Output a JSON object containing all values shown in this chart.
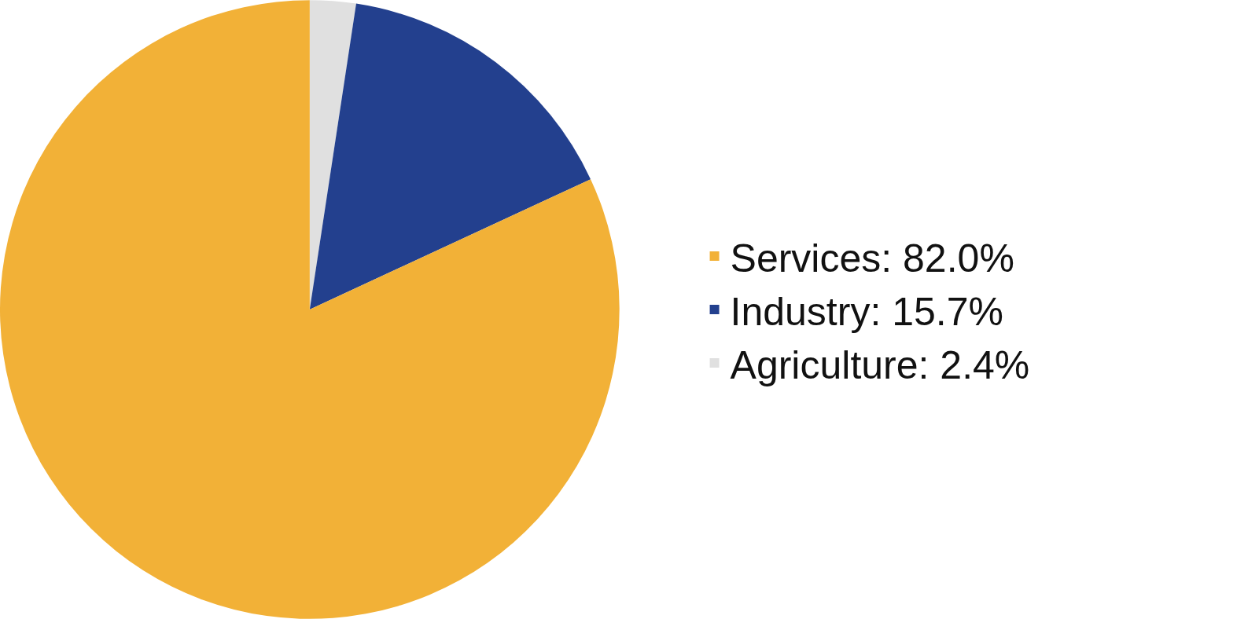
{
  "chart_data": {
    "type": "pie",
    "categories": [
      "Services: 82.0%",
      "Industry: 15.7%",
      "Agriculture: 2.4%"
    ],
    "values": [
      82.0,
      15.7,
      2.4
    ],
    "colors": [
      "#f2b137",
      "#23408e",
      "#e0e0e0"
    ],
    "legend": "right"
  }
}
